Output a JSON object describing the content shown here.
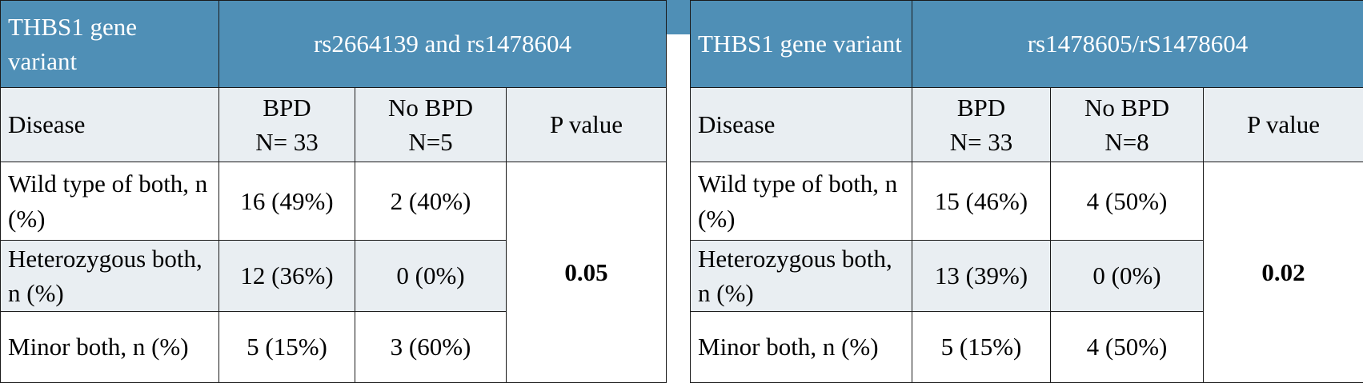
{
  "tables": [
    {
      "header": {
        "variant": "THBS1 gene variant",
        "snps": "rs2664139 and rs1478604"
      },
      "subheader": {
        "disease": "Disease",
        "bpd": "BPD\nN= 33",
        "no_bpd": "No BPD\nN=5",
        "p": "P value"
      },
      "rows": [
        [
          "Wild type of both, n (%)",
          "16 (49%)",
          "2 (40%)"
        ],
        [
          "Heterozygous both, n (%)",
          "12 (36%)",
          "0 (0%)"
        ],
        [
          "Minor both, n (%)",
          "5 (15%)",
          "3 (60%)"
        ]
      ],
      "p_value": "0.05"
    },
    {
      "header": {
        "variant": "THBS1 gene variant",
        "snps": "rs1478605/rS1478604"
      },
      "subheader": {
        "disease": "Disease",
        "bpd": "BPD\nN= 33",
        "no_bpd": "No BPD\nN=8",
        "p": "P value"
      },
      "rows": [
        [
          "Wild type of both, n (%)",
          "15 (46%)",
          "4 (50%)"
        ],
        [
          "Heterozygous both, n (%)",
          "13 (39%)",
          "0 (0%)"
        ],
        [
          "Minor both, n (%)",
          "5 (15%)",
          "4 (50%)"
        ]
      ],
      "p_value": "0.02"
    }
  ]
}
